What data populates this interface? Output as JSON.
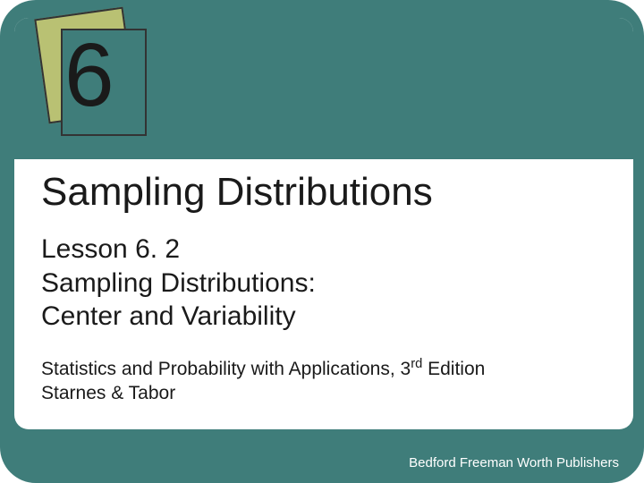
{
  "colors": {
    "slide_bg": "#3f7d7a",
    "panel_bg": "#ffffff",
    "accent_square": "#b9c173",
    "text": "#1a1a1a",
    "publisher_text": "#ffffff"
  },
  "typography": {
    "chapter_number_fontsize": 100,
    "main_title_fontsize": 44,
    "lesson_fontsize": 30,
    "book_fontsize": 21,
    "publisher_fontsize": 15,
    "font_family": "Arial"
  },
  "layout": {
    "slide_width": 720,
    "slide_height": 540,
    "slide_border_radius": 40,
    "top_band_height": 158
  },
  "chapter_number": "6",
  "main_title": "Sampling Distributions",
  "lesson": {
    "line1": "Lesson 6. 2",
    "line2": "Sampling Distributions:",
    "line3": "Center and Variability"
  },
  "book": {
    "title_prefix": "Statistics and Probability with Applications, 3",
    "title_sup": "rd",
    "title_suffix": " Edition",
    "authors": "Starnes & Tabor"
  },
  "publisher": "Bedford Freeman Worth Publishers"
}
